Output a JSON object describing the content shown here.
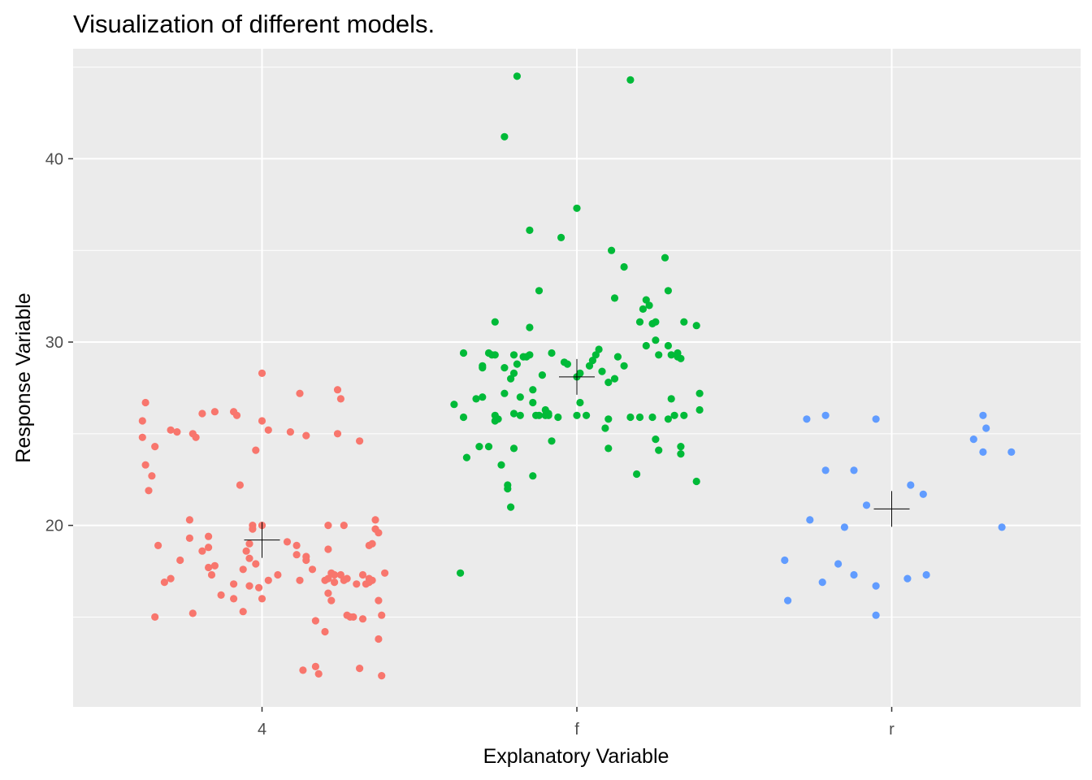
{
  "chart_data": {
    "type": "scatter",
    "title": "Visualization of different models.",
    "xlabel": "Explanatory Variable",
    "ylabel": "Response Variable",
    "categories": [
      "4",
      "f",
      "r"
    ],
    "ylim": [
      10.1,
      46.0
    ],
    "yticks": [
      20,
      30,
      40
    ],
    "grid": true,
    "legend": "none",
    "jittered": true,
    "series": [
      {
        "category": "4",
        "color": "#F8766D",
        "mean": 19.2,
        "points": [
          [
            -0.38,
            25.7
          ],
          [
            -0.38,
            24.8
          ],
          [
            -0.37,
            23.3
          ],
          [
            -0.36,
            21.9
          ],
          [
            -0.37,
            26.7
          ],
          [
            -0.35,
            22.7
          ],
          [
            -0.34,
            24.3
          ],
          [
            -0.34,
            15.0
          ],
          [
            -0.33,
            18.9
          ],
          [
            -0.31,
            16.9
          ],
          [
            -0.29,
            17.1
          ],
          [
            -0.29,
            25.2
          ],
          [
            -0.27,
            25.1
          ],
          [
            -0.26,
            18.1
          ],
          [
            -0.23,
            20.3
          ],
          [
            -0.23,
            19.3
          ],
          [
            -0.22,
            15.2
          ],
          [
            -0.22,
            25.0
          ],
          [
            -0.21,
            24.8
          ],
          [
            -0.19,
            26.1
          ],
          [
            -0.19,
            18.6
          ],
          [
            -0.17,
            19.4
          ],
          [
            -0.17,
            18.8
          ],
          [
            -0.17,
            17.7
          ],
          [
            -0.16,
            17.3
          ],
          [
            -0.15,
            26.2
          ],
          [
            -0.15,
            17.8
          ],
          [
            -0.13,
            16.2
          ],
          [
            -0.09,
            16.8
          ],
          [
            -0.09,
            16.0
          ],
          [
            -0.09,
            26.2
          ],
          [
            -0.08,
            26.0
          ],
          [
            -0.07,
            22.2
          ],
          [
            -0.06,
            15.3
          ],
          [
            -0.06,
            17.6
          ],
          [
            -0.05,
            18.6
          ],
          [
            -0.04,
            18.2
          ],
          [
            -0.04,
            16.7
          ],
          [
            -0.04,
            19.0
          ],
          [
            -0.03,
            19.8
          ],
          [
            -0.03,
            20.0
          ],
          [
            -0.02,
            24.1
          ],
          [
            -0.02,
            17.9
          ],
          [
            -0.01,
            16.6
          ],
          [
            0.0,
            25.7
          ],
          [
            0.0,
            28.3
          ],
          [
            0.0,
            20.0
          ],
          [
            0.0,
            16.0
          ],
          [
            0.02,
            17.0
          ],
          [
            0.02,
            25.2
          ],
          [
            0.05,
            17.3
          ],
          [
            0.08,
            19.1
          ],
          [
            0.09,
            25.1
          ],
          [
            0.11,
            18.4
          ],
          [
            0.11,
            18.9
          ],
          [
            0.12,
            17.0
          ],
          [
            0.12,
            27.2
          ],
          [
            0.13,
            12.1
          ],
          [
            0.14,
            24.9
          ],
          [
            0.14,
            18.1
          ],
          [
            0.14,
            18.3
          ],
          [
            0.16,
            17.6
          ],
          [
            0.17,
            14.8
          ],
          [
            0.17,
            12.3
          ],
          [
            0.18,
            11.9
          ],
          [
            0.2,
            14.2
          ],
          [
            0.2,
            17.0
          ],
          [
            0.21,
            17.1
          ],
          [
            0.21,
            18.7
          ],
          [
            0.21,
            20.0
          ],
          [
            0.21,
            16.3
          ],
          [
            0.22,
            15.9
          ],
          [
            0.22,
            17.4
          ],
          [
            0.23,
            17.3
          ],
          [
            0.23,
            16.9
          ],
          [
            0.24,
            27.4
          ],
          [
            0.24,
            25.0
          ],
          [
            0.25,
            26.9
          ],
          [
            0.25,
            17.3
          ],
          [
            0.26,
            17.0
          ],
          [
            0.26,
            20.0
          ],
          [
            0.27,
            17.1
          ],
          [
            0.27,
            15.1
          ],
          [
            0.28,
            15.0
          ],
          [
            0.29,
            15.0
          ],
          [
            0.3,
            16.8
          ],
          [
            0.31,
            24.6
          ],
          [
            0.31,
            12.2
          ],
          [
            0.32,
            17.3
          ],
          [
            0.32,
            14.9
          ],
          [
            0.33,
            16.8
          ],
          [
            0.34,
            17.1
          ],
          [
            0.34,
            16.9
          ],
          [
            0.34,
            18.9
          ],
          [
            0.35,
            17.0
          ],
          [
            0.35,
            19.0
          ],
          [
            0.36,
            20.3
          ],
          [
            0.36,
            19.8
          ],
          [
            0.37,
            19.6
          ],
          [
            0.37,
            13.8
          ],
          [
            0.37,
            15.9
          ],
          [
            0.38,
            11.8
          ],
          [
            0.38,
            15.1
          ],
          [
            0.39,
            17.4
          ]
        ]
      },
      {
        "category": "f",
        "color": "#00BA38",
        "mean": 28.1,
        "points": [
          [
            -0.39,
            26.6
          ],
          [
            -0.37,
            17.4
          ],
          [
            -0.36,
            29.4
          ],
          [
            -0.36,
            25.9
          ],
          [
            -0.35,
            23.7
          ],
          [
            -0.32,
            26.9
          ],
          [
            -0.31,
            24.3
          ],
          [
            -0.3,
            27.0
          ],
          [
            -0.3,
            28.7
          ],
          [
            -0.3,
            28.6
          ],
          [
            -0.28,
            29.4
          ],
          [
            -0.28,
            24.3
          ],
          [
            -0.27,
            29.3
          ],
          [
            -0.26,
            31.1
          ],
          [
            -0.26,
            29.3
          ],
          [
            -0.26,
            25.7
          ],
          [
            -0.26,
            26.0
          ],
          [
            -0.25,
            25.8
          ],
          [
            -0.24,
            23.3
          ],
          [
            -0.23,
            28.6
          ],
          [
            -0.23,
            41.2
          ],
          [
            -0.23,
            27.2
          ],
          [
            -0.22,
            22.2
          ],
          [
            -0.22,
            22.0
          ],
          [
            -0.21,
            21.0
          ],
          [
            -0.21,
            28.0
          ],
          [
            -0.2,
            24.2
          ],
          [
            -0.2,
            26.1
          ],
          [
            -0.2,
            28.3
          ],
          [
            -0.2,
            29.3
          ],
          [
            -0.19,
            44.5
          ],
          [
            -0.19,
            28.8
          ],
          [
            -0.18,
            26.0
          ],
          [
            -0.18,
            27.0
          ],
          [
            -0.17,
            29.2
          ],
          [
            -0.16,
            29.2
          ],
          [
            -0.15,
            30.8
          ],
          [
            -0.15,
            36.1
          ],
          [
            -0.15,
            29.3
          ],
          [
            -0.14,
            26.7
          ],
          [
            -0.14,
            22.7
          ],
          [
            -0.14,
            27.4
          ],
          [
            -0.13,
            26.0
          ],
          [
            -0.12,
            32.8
          ],
          [
            -0.12,
            26.0
          ],
          [
            -0.11,
            28.2
          ],
          [
            -0.1,
            26.0
          ],
          [
            -0.1,
            26.3
          ],
          [
            -0.09,
            26.0
          ],
          [
            -0.09,
            26.1
          ],
          [
            -0.08,
            29.4
          ],
          [
            -0.08,
            24.6
          ],
          [
            -0.06,
            25.9
          ],
          [
            -0.05,
            35.7
          ],
          [
            -0.04,
            28.9
          ],
          [
            -0.03,
            28.8
          ],
          [
            0.0,
            26.0
          ],
          [
            0.0,
            37.3
          ],
          [
            0.0,
            28.1
          ],
          [
            0.01,
            28.3
          ],
          [
            0.01,
            26.7
          ],
          [
            0.03,
            26.0
          ],
          [
            0.04,
            28.7
          ],
          [
            0.05,
            29.0
          ],
          [
            0.06,
            29.3
          ],
          [
            0.07,
            29.6
          ],
          [
            0.08,
            28.4
          ],
          [
            0.09,
            25.3
          ],
          [
            0.1,
            24.2
          ],
          [
            0.1,
            27.8
          ],
          [
            0.1,
            25.8
          ],
          [
            0.11,
            35.0
          ],
          [
            0.12,
            28.0
          ],
          [
            0.12,
            32.4
          ],
          [
            0.13,
            29.2
          ],
          [
            0.15,
            28.7
          ],
          [
            0.15,
            34.1
          ],
          [
            0.17,
            44.3
          ],
          [
            0.17,
            25.9
          ],
          [
            0.19,
            22.8
          ],
          [
            0.2,
            25.9
          ],
          [
            0.2,
            31.1
          ],
          [
            0.21,
            31.8
          ],
          [
            0.22,
            32.3
          ],
          [
            0.22,
            29.8
          ],
          [
            0.23,
            32.0
          ],
          [
            0.24,
            25.9
          ],
          [
            0.24,
            31.0
          ],
          [
            0.25,
            31.1
          ],
          [
            0.25,
            30.1
          ],
          [
            0.25,
            24.7
          ],
          [
            0.26,
            29.3
          ],
          [
            0.26,
            24.1
          ],
          [
            0.28,
            34.6
          ],
          [
            0.29,
            32.8
          ],
          [
            0.29,
            29.8
          ],
          [
            0.29,
            25.8
          ],
          [
            0.3,
            26.9
          ],
          [
            0.3,
            29.3
          ],
          [
            0.31,
            26.0
          ],
          [
            0.32,
            29.2
          ],
          [
            0.32,
            29.4
          ],
          [
            0.33,
            29.1
          ],
          [
            0.33,
            23.9
          ],
          [
            0.33,
            24.3
          ],
          [
            0.34,
            26.0
          ],
          [
            0.34,
            31.1
          ],
          [
            0.38,
            30.9
          ],
          [
            0.38,
            22.4
          ],
          [
            0.39,
            26.3
          ],
          [
            0.39,
            27.2
          ]
        ]
      },
      {
        "category": "r",
        "color": "#619CFF",
        "mean": 20.9,
        "points": [
          [
            -0.34,
            18.1
          ],
          [
            -0.33,
            15.9
          ],
          [
            -0.27,
            25.8
          ],
          [
            -0.26,
            20.3
          ],
          [
            -0.22,
            16.9
          ],
          [
            -0.21,
            26.0
          ],
          [
            -0.21,
            23.0
          ],
          [
            -0.17,
            17.9
          ],
          [
            -0.15,
            19.9
          ],
          [
            -0.12,
            17.3
          ],
          [
            -0.12,
            23.0
          ],
          [
            -0.08,
            21.1
          ],
          [
            -0.05,
            25.8
          ],
          [
            -0.05,
            16.7
          ],
          [
            -0.05,
            15.1
          ],
          [
            0.05,
            17.1
          ],
          [
            0.06,
            22.2
          ],
          [
            0.1,
            21.7
          ],
          [
            0.11,
            17.3
          ],
          [
            0.26,
            24.7
          ],
          [
            0.29,
            26.0
          ],
          [
            0.29,
            24.0
          ],
          [
            0.3,
            25.3
          ],
          [
            0.35,
            19.9
          ],
          [
            0.38,
            24.0
          ]
        ]
      }
    ]
  }
}
